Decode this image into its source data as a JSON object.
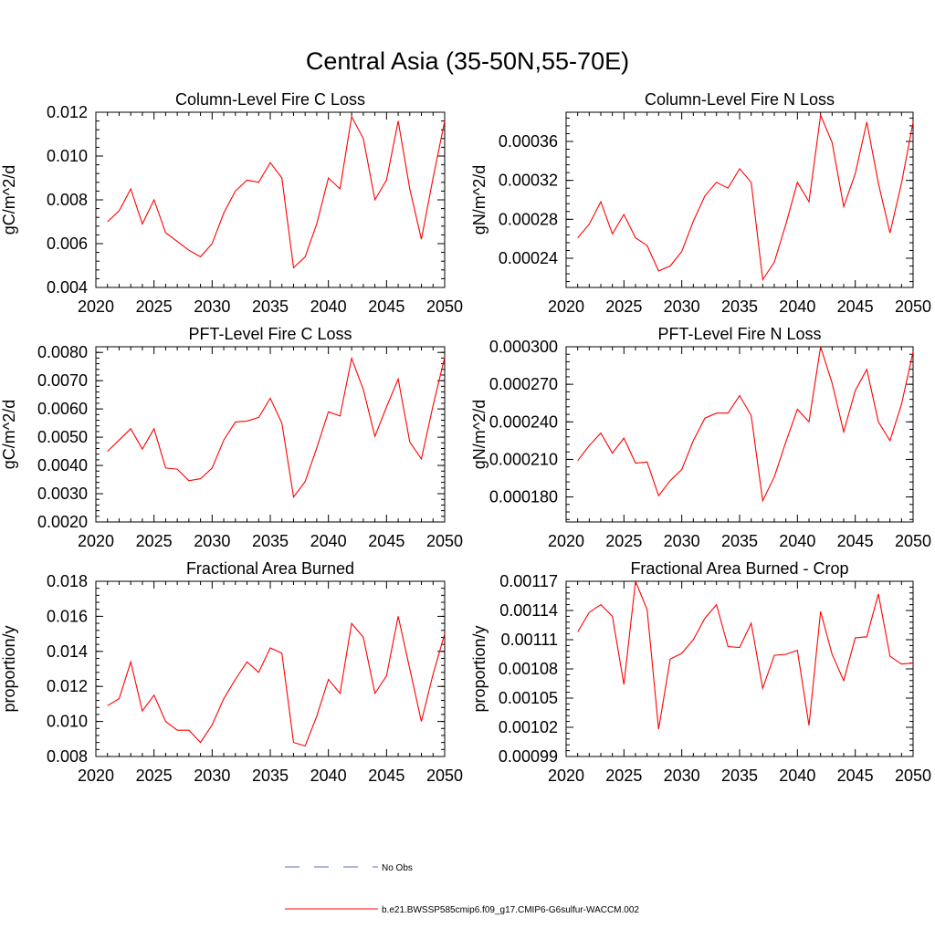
{
  "figure": {
    "title": "Central Asia (35-50N,55-70E)",
    "legend": {
      "placement": "bottom-center",
      "entries": [
        {
          "label": "No Obs",
          "color": "#5b6cbd",
          "style": "dashed"
        },
        {
          "label": "b.e21.BWSSP585cmip6.f09_g17.CMIP6-G6sulfur-WACCM.002",
          "color": "#ff0000",
          "style": "solid"
        }
      ]
    }
  },
  "chart_data": [
    {
      "type": "line",
      "title": "Column-Level Fire C Loss",
      "ylabel": "gC/m^2/d",
      "xlabel": "",
      "xlim": [
        2020,
        2050
      ],
      "ylim": [
        0.004,
        0.012
      ],
      "xticks": [
        2020,
        2025,
        2030,
        2035,
        2040,
        2045,
        2050
      ],
      "xtick_labels": [
        "2020",
        "2025",
        "2030",
        "2035",
        "2040",
        "2045",
        "2050"
      ],
      "yticks": [
        0.004,
        0.006,
        0.008,
        0.01,
        0.012
      ],
      "ytick_labels": [
        "0.004",
        "0.006",
        "0.008",
        "0.010",
        "0.012"
      ],
      "grid": false,
      "series": [
        {
          "color": "#ff0000",
          "x": [
            2021,
            2022,
            2023,
            2024,
            2025,
            2026,
            2027,
            2028,
            2029,
            2030,
            2031,
            2032,
            2033,
            2034,
            2035,
            2036,
            2037,
            2038,
            2039,
            2040,
            2041,
            2042,
            2043,
            2044,
            2045,
            2046,
            2047,
            2048,
            2049,
            2050
          ],
          "values": [
            0.007,
            0.0075,
            0.0085,
            0.0069,
            0.008,
            0.0065,
            0.0061,
            0.0057,
            0.0054,
            0.006,
            0.0074,
            0.0084,
            0.0089,
            0.0088,
            0.0097,
            0.009,
            0.0049,
            0.0054,
            0.0069,
            0.009,
            0.0085,
            0.0118,
            0.0108,
            0.008,
            0.0089,
            0.0116,
            0.0085,
            0.0062,
            0.009,
            0.0116
          ]
        }
      ]
    },
    {
      "type": "line",
      "title": "Column-Level Fire N Loss",
      "ylabel": "gN/m^2/d",
      "xlabel": "",
      "xlim": [
        2020,
        2050
      ],
      "ylim": [
        0.00021,
        0.00039
      ],
      "xticks": [
        2020,
        2025,
        2030,
        2035,
        2040,
        2045,
        2050
      ],
      "xtick_labels": [
        "2020",
        "2025",
        "2030",
        "2035",
        "2040",
        "2045",
        "2050"
      ],
      "yticks": [
        0.00024,
        0.00028,
        0.00032,
        0.00036
      ],
      "ytick_labels": [
        "0.00024",
        "0.00028",
        "0.00032",
        "0.00036"
      ],
      "grid": false,
      "series": [
        {
          "color": "#ff0000",
          "x": [
            2021,
            2022,
            2023,
            2024,
            2025,
            2026,
            2027,
            2028,
            2029,
            2030,
            2031,
            2032,
            2033,
            2034,
            2035,
            2036,
            2037,
            2038,
            2039,
            2040,
            2041,
            2042,
            2043,
            2044,
            2045,
            2046,
            2047,
            2048,
            2049,
            2050
          ],
          "values": [
            0.000261,
            0.000275,
            0.000298,
            0.000265,
            0.000285,
            0.000261,
            0.000253,
            0.000227,
            0.000232,
            0.000247,
            0.000278,
            0.000304,
            0.000318,
            0.000312,
            0.000332,
            0.000318,
            0.000218,
            0.000236,
            0.000275,
            0.000318,
            0.000298,
            0.000387,
            0.000359,
            0.000293,
            0.000327,
            0.00038,
            0.000317,
            0.000266,
            0.000317,
            0.00038
          ]
        }
      ]
    },
    {
      "type": "line",
      "title": "PFT-Level Fire C Loss",
      "ylabel": "gC/m^2/d",
      "xlabel": "",
      "xlim": [
        2020,
        2050
      ],
      "ylim": [
        0.002,
        0.0082
      ],
      "xticks": [
        2020,
        2025,
        2030,
        2035,
        2040,
        2045,
        2050
      ],
      "xtick_labels": [
        "2020",
        "2025",
        "2030",
        "2035",
        "2040",
        "2045",
        "2050"
      ],
      "yticks": [
        0.002,
        0.003,
        0.004,
        0.005,
        0.006,
        0.007,
        0.008
      ],
      "ytick_labels": [
        "0.0020",
        "0.0030",
        "0.0040",
        "0.0050",
        "0.0060",
        "0.0070",
        "0.0080"
      ],
      "grid": false,
      "series": [
        {
          "color": "#ff0000",
          "x": [
            2021,
            2022,
            2023,
            2024,
            2025,
            2026,
            2027,
            2028,
            2029,
            2030,
            2031,
            2032,
            2033,
            2034,
            2035,
            2036,
            2037,
            2038,
            2039,
            2040,
            2041,
            2042,
            2043,
            2044,
            2045,
            2046,
            2047,
            2048,
            2049,
            2050
          ],
          "values": [
            0.0045,
            0.0049,
            0.0053,
            0.00458,
            0.0053,
            0.00391,
            0.00387,
            0.00346,
            0.00353,
            0.00391,
            0.0049,
            0.00554,
            0.00557,
            0.0057,
            0.00638,
            0.0055,
            0.00288,
            0.00343,
            0.00462,
            0.0059,
            0.00575,
            0.00779,
            0.00669,
            0.00503,
            0.00607,
            0.00706,
            0.00483,
            0.00423,
            0.00612,
            0.00783
          ]
        }
      ]
    },
    {
      "type": "line",
      "title": "PFT-Level Fire N Loss",
      "ylabel": "gN/m^2/d",
      "xlabel": "",
      "xlim": [
        2020,
        2050
      ],
      "ylim": [
        0.00016,
        0.0003
      ],
      "xticks": [
        2020,
        2025,
        2030,
        2035,
        2040,
        2045,
        2050
      ],
      "xtick_labels": [
        "2020",
        "2025",
        "2030",
        "2035",
        "2040",
        "2045",
        "2050"
      ],
      "yticks": [
        0.00018,
        0.00021,
        0.00024,
        0.00027,
        0.0003
      ],
      "ytick_labels": [
        "0.000180",
        "0.000210",
        "0.000240",
        "0.000270",
        "0.000300"
      ],
      "grid": false,
      "series": [
        {
          "color": "#ff0000",
          "x": [
            2021,
            2022,
            2023,
            2024,
            2025,
            2026,
            2027,
            2028,
            2029,
            2030,
            2031,
            2032,
            2033,
            2034,
            2035,
            2036,
            2037,
            2038,
            2039,
            2040,
            2041,
            2042,
            2043,
            2044,
            2045,
            2046,
            2047,
            2048,
            2049,
            2050
          ],
          "values": [
            0.000209,
            0.000221,
            0.000231,
            0.000215,
            0.000227,
            0.000207,
            0.000208,
            0.000181,
            0.000193,
            0.000202,
            0.000225,
            0.000243,
            0.000247,
            0.000247,
            0.000261,
            0.000245,
            0.000177,
            0.000196,
            0.000224,
            0.00025,
            0.00024,
            0.0003,
            0.000271,
            0.000232,
            0.000265,
            0.000282,
            0.00024,
            0.000225,
            0.000254,
            0.000296
          ]
        }
      ]
    },
    {
      "type": "line",
      "title": "Fractional Area Burned",
      "ylabel": "proportion/y",
      "xlabel": "",
      "xlim": [
        2020,
        2050
      ],
      "ylim": [
        0.008,
        0.018
      ],
      "xticks": [
        2020,
        2025,
        2030,
        2035,
        2040,
        2045,
        2050
      ],
      "xtick_labels": [
        "2020",
        "2025",
        "2030",
        "2035",
        "2040",
        "2045",
        "2050"
      ],
      "yticks": [
        0.008,
        0.01,
        0.012,
        0.014,
        0.016,
        0.018
      ],
      "ytick_labels": [
        "0.008",
        "0.010",
        "0.012",
        "0.014",
        "0.016",
        "0.018"
      ],
      "grid": false,
      "series": [
        {
          "color": "#ff0000",
          "x": [
            2021,
            2022,
            2023,
            2024,
            2025,
            2026,
            2027,
            2028,
            2029,
            2030,
            2031,
            2032,
            2033,
            2034,
            2035,
            2036,
            2037,
            2038,
            2039,
            2040,
            2041,
            2042,
            2043,
            2044,
            2045,
            2046,
            2047,
            2048,
            2049,
            2050
          ],
          "values": [
            0.0109,
            0.0113,
            0.0134,
            0.0106,
            0.0115,
            0.01,
            0.0095,
            0.0095,
            0.0088,
            0.0098,
            0.0113,
            0.0124,
            0.0134,
            0.0128,
            0.0142,
            0.0139,
            0.0088,
            0.0086,
            0.0103,
            0.0124,
            0.0116,
            0.0156,
            0.0148,
            0.0116,
            0.0126,
            0.016,
            0.013,
            0.01,
            0.0127,
            0.015
          ]
        }
      ]
    },
    {
      "type": "line",
      "title": "Fractional Area Burned - Crop",
      "ylabel": "proportion/y",
      "xlabel": "",
      "xlim": [
        2020,
        2050
      ],
      "ylim": [
        0.00099,
        0.00117
      ],
      "xticks": [
        2020,
        2025,
        2030,
        2035,
        2040,
        2045,
        2050
      ],
      "xtick_labels": [
        "2020",
        "2025",
        "2030",
        "2035",
        "2040",
        "2045",
        "2050"
      ],
      "yticks": [
        0.00099,
        0.00102,
        0.00105,
        0.00108,
        0.00111,
        0.00114,
        0.00117
      ],
      "ytick_labels": [
        "0.00099",
        "0.00102",
        "0.00105",
        "0.00108",
        "0.00111",
        "0.00114",
        "0.00117"
      ],
      "grid": false,
      "series": [
        {
          "color": "#ff0000",
          "x": [
            2021,
            2022,
            2023,
            2024,
            2025,
            2026,
            2027,
            2028,
            2029,
            2030,
            2031,
            2032,
            2033,
            2034,
            2035,
            2036,
            2037,
            2038,
            2039,
            2040,
            2041,
            2042,
            2043,
            2044,
            2045,
            2046,
            2047,
            2048,
            2049,
            2050
          ],
          "values": [
            0.001118,
            0.001138,
            0.001146,
            0.001134,
            0.001064,
            0.00117,
            0.001141,
            0.001018,
            0.00109,
            0.001096,
            0.00111,
            0.001132,
            0.001146,
            0.001103,
            0.001102,
            0.001127,
            0.00106,
            0.001094,
            0.001095,
            0.001099,
            0.001022,
            0.001139,
            0.001095,
            0.001068,
            0.001112,
            0.001113,
            0.001157,
            0.001093,
            0.001085,
            0.001086
          ]
        }
      ]
    }
  ]
}
